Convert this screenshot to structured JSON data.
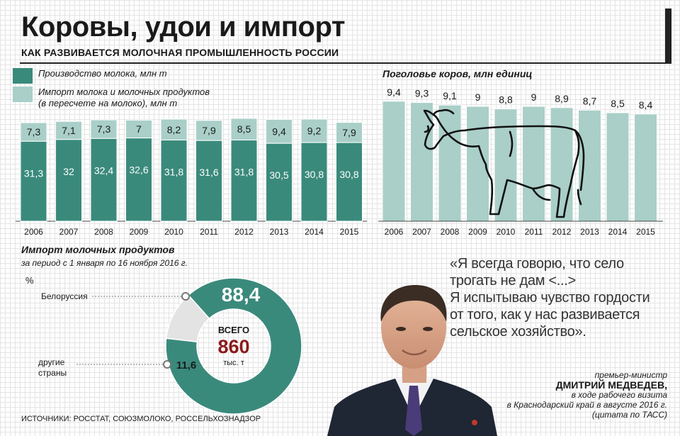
{
  "header": {
    "title": "Коровы, удои и импорт",
    "subtitle": "КАК РАЗВИВАЕТСЯ МОЛОЧНАЯ ПРОМЫШЛЕННОСТЬ РОССИИ"
  },
  "legend": {
    "production": {
      "label": "Производство молока, млн т",
      "color": "#3a8a7c"
    },
    "import": {
      "line1": "Импорт молока и молочных продуктов",
      "line2": "(в пересчете на молоко), млн т",
      "color": "#a9cfc8"
    }
  },
  "cows_title": "Поголовье коров, млн единиц",
  "imports_title": "Импорт молочных продуктов",
  "imports_subtitle": "за период с 1 января по 16 ноября 2016 г.",
  "percent_label": "%",
  "donut_total": {
    "label": "ВСЕГО",
    "value": "860",
    "unit": "тыс. т",
    "value_color": "#8b1a1a"
  },
  "quote": {
    "line1": "«Я всегда говорю, что село",
    "line2": "трогать не дам <...>",
    "line3": "Я испытываю чувство гордости",
    "line4": "от того, как у нас развивается",
    "line5": "сельское хозяйство»."
  },
  "attribution": {
    "role": "премьер-министр",
    "name": "ДМИТРИЙ МЕДВЕДЕВ,",
    "l1": "в ходе рабочего визита",
    "l2": "в Краснодарский край в августе 2016 г.",
    "l3": "(цитата по ТАСС)"
  },
  "sources": "ИСТОЧНИКИ: РОССТАТ, СОЮЗМОЛОКО, РОССЕЛЬХОЗНАДЗОР",
  "chart_data": [
    {
      "type": "bar",
      "stacked": true,
      "categories": [
        "2006",
        "2007",
        "2008",
        "2009",
        "2010",
        "2011",
        "2012",
        "2013",
        "2014",
        "2015"
      ],
      "series": [
        {
          "name": "Производство молока, млн т",
          "values": [
            31.3,
            32,
            32.4,
            32.6,
            31.8,
            31.6,
            31.8,
            30.5,
            30.8,
            30.8
          ],
          "labels": [
            "31,3",
            "32",
            "32,4",
            "32,6",
            "31,8",
            "31,6",
            "31,8",
            "30,5",
            "30,8",
            "30,8"
          ],
          "color": "#3a8a7c"
        },
        {
          "name": "Импорт молока и молочных продуктов (в пересчете на молоко), млн т",
          "values": [
            7.3,
            7.1,
            7.3,
            7,
            8.2,
            7.9,
            8.5,
            9.4,
            9.2,
            7.9
          ],
          "labels": [
            "7,3",
            "7,1",
            "7,3",
            "7",
            "8,2",
            "7,9",
            "8,5",
            "9,4",
            "9,2",
            "7,9"
          ],
          "color": "#a9cfc8"
        }
      ]
    },
    {
      "type": "bar",
      "title": "Поголовье коров, млн единиц",
      "categories": [
        "2006",
        "2007",
        "2008",
        "2009",
        "2010",
        "2011",
        "2012",
        "2013",
        "2014",
        "2015"
      ],
      "values": [
        9.4,
        9.3,
        9.1,
        9,
        8.8,
        9,
        8.9,
        8.7,
        8.5,
        8.4
      ],
      "labels": [
        "9,4",
        "9,3",
        "9,1",
        "9",
        "8,8",
        "9",
        "8,9",
        "8,7",
        "8,5",
        "8,4"
      ],
      "color": "#a9cfc8"
    },
    {
      "type": "pie",
      "title": "Импорт молочных продуктов",
      "categories": [
        "Белоруссия",
        "другие страны"
      ],
      "values": [
        88.4,
        11.6
      ],
      "labels": [
        "88,4",
        "11,6"
      ],
      "colors": [
        "#3a8a7c",
        "#e3e3e3"
      ]
    }
  ]
}
